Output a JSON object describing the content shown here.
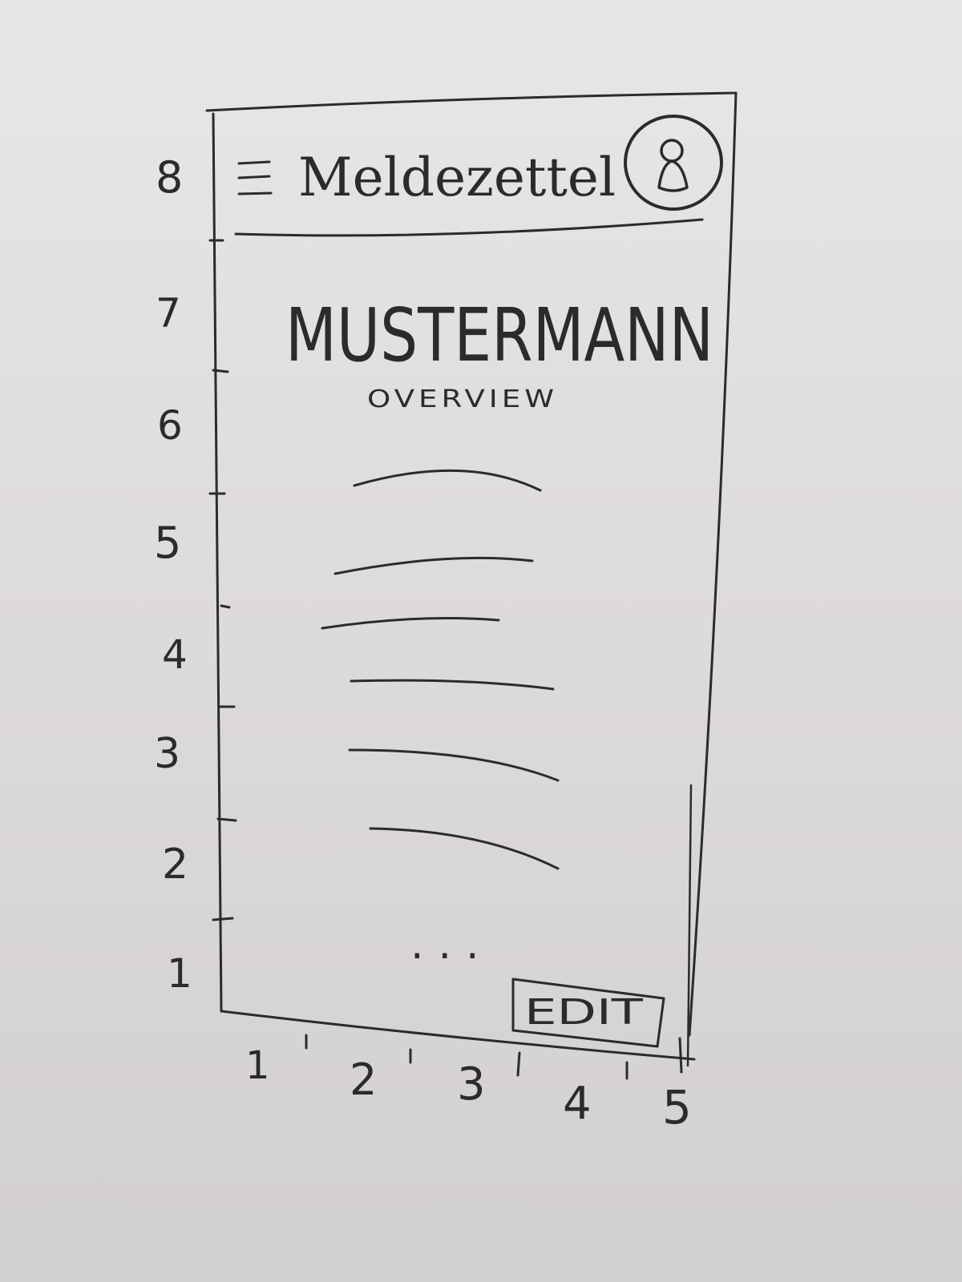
{
  "app_bar": {
    "title": "Meldezettel",
    "menu_icon": "hamburger-menu-icon",
    "profile_icon": "user-profile-icon"
  },
  "content": {
    "heading": "MUSTERMANN",
    "subheading": "OVERVIEW",
    "list_item_count": 6,
    "more_indicator": "...",
    "edit_button_label": "EDIT"
  },
  "grid_labels": {
    "vertical": [
      "8",
      "7",
      "6",
      "5",
      "4",
      "3",
      "2",
      "1"
    ],
    "horizontal": [
      "1",
      "2",
      "3",
      "4",
      "5"
    ]
  },
  "colors": {
    "ink": "#2b2b2b",
    "whiteboard": "#e4e2e2"
  }
}
